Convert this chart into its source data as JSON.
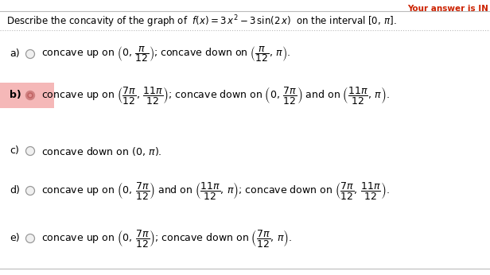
{
  "background_color": "#ffffff",
  "header_color": "#cc2200",
  "highlight_b_color": "#f5b8b8",
  "title": "Describe the concavity of the graph of  $f(x) = 3\\,x^2 - 3\\,\\sin(2\\,x)$  on the interval $[0,\\,\\pi]$.",
  "options": [
    {
      "label": "a)",
      "bold": false,
      "radio_filled": false,
      "highlight": false,
      "text": "concave up on $\\left(0,\\,\\dfrac{\\pi}{12}\\right)$; concave down on $\\left(\\dfrac{\\pi}{12},\\,\\pi\\right)$."
    },
    {
      "label": "b)",
      "bold": true,
      "radio_filled": true,
      "highlight": true,
      "text": "concave up on $\\left(\\dfrac{7\\pi}{12},\\,\\dfrac{11\\pi}{12}\\right)$; concave down on $\\left(0,\\,\\dfrac{7\\pi}{12}\\right)$ and on $\\left(\\dfrac{11\\pi}{12},\\,\\pi\\right)$."
    },
    {
      "label": "c)",
      "bold": false,
      "radio_filled": false,
      "highlight": false,
      "text": "concave down on $(0,\\,\\pi)$."
    },
    {
      "label": "d)",
      "bold": false,
      "radio_filled": false,
      "highlight": false,
      "text": "concave up on $\\left(0,\\,\\dfrac{7\\pi}{12}\\right)$ and on $\\left(\\dfrac{11\\pi}{12},\\,\\pi\\right)$; concave down on $\\left(\\dfrac{7\\pi}{12},\\,\\dfrac{11\\pi}{12}\\right)$."
    },
    {
      "label": "e)",
      "bold": false,
      "radio_filled": false,
      "highlight": false,
      "text": "concave up on $\\left(0,\\,\\dfrac{7\\pi}{12}\\right)$; concave down on $\\left(\\dfrac{7\\pi}{12},\\,\\pi\\right)$."
    }
  ],
  "figwidth": 6.16,
  "figheight": 3.46,
  "dpi": 100
}
